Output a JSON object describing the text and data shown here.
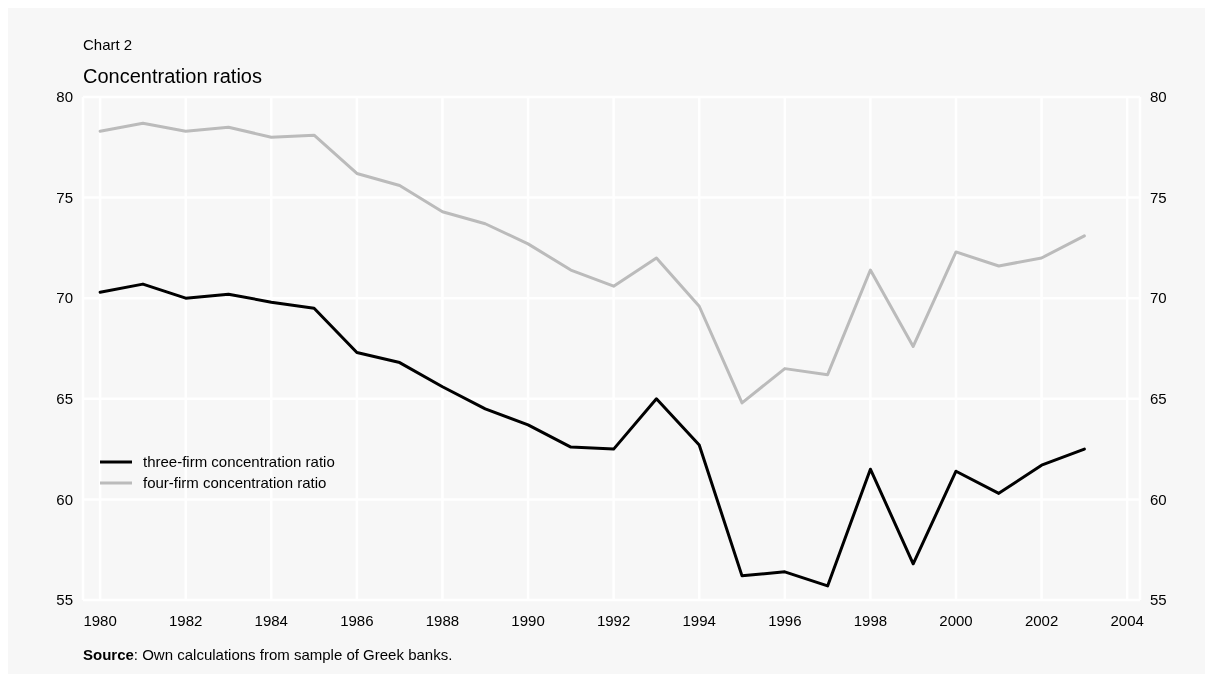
{
  "chart_data": {
    "type": "line",
    "subtitle": "Chart 2",
    "title": "Concentration ratios",
    "x": [
      1980,
      1981,
      1982,
      1983,
      1984,
      1985,
      1986,
      1987,
      1988,
      1989,
      1990,
      1991,
      1992,
      1993,
      1994,
      1995,
      1996,
      1997,
      1998,
      1999,
      2000,
      2001,
      2002,
      2003
    ],
    "series": [
      {
        "name": "three-firm concentration ratio",
        "color": "#000000",
        "values": [
          70.3,
          70.7,
          70.0,
          70.2,
          69.8,
          69.5,
          67.3,
          66.8,
          65.6,
          64.5,
          63.7,
          62.6,
          62.5,
          65.0,
          62.7,
          56.2,
          56.4,
          55.7,
          61.5,
          56.8,
          61.4,
          60.3,
          61.7,
          62.5
        ]
      },
      {
        "name": "four-firm concentration ratio",
        "color": "#bbbbbb",
        "values": [
          78.3,
          78.7,
          78.3,
          78.5,
          78.0,
          78.1,
          76.2,
          75.6,
          74.3,
          73.7,
          72.7,
          71.4,
          70.6,
          72.0,
          69.6,
          64.8,
          66.5,
          66.2,
          71.4,
          67.6,
          72.3,
          71.6,
          72.0,
          73.1
        ]
      }
    ],
    "xlim": [
      1979.6,
      2004.3
    ],
    "xticks": [
      1980,
      1982,
      1984,
      1986,
      1988,
      1990,
      1992,
      1994,
      1996,
      1998,
      2000,
      2002,
      2004
    ],
    "ylim": [
      55,
      80
    ],
    "yticks": [
      55,
      60,
      65,
      70,
      75,
      80
    ],
    "y2lim": [
      55,
      80
    ],
    "y2ticks": [
      55,
      60,
      65,
      70,
      75,
      80
    ],
    "grid": true,
    "legend": "left",
    "line_style": "solid",
    "marker": "none",
    "annotations": [
      "Source: Own calculations from sample of Greek banks."
    ]
  }
}
